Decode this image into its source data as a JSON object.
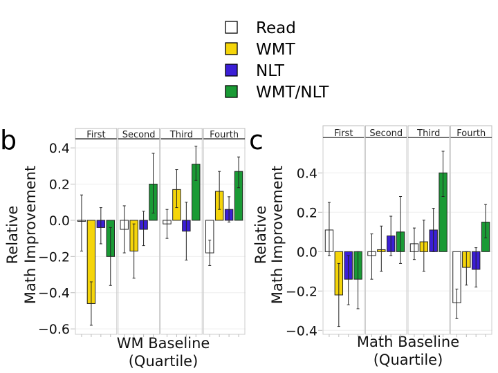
{
  "legend": {
    "items": [
      {
        "label": "Read",
        "color": "#ffffff"
      },
      {
        "label": "WMT",
        "color": "#f5d50a"
      },
      {
        "label": "NLT",
        "color": "#3b1fd6"
      },
      {
        "label": "WMT/NLT",
        "color": "#1a9a35"
      }
    ]
  },
  "chart_data": [
    {
      "panel": "b",
      "type": "bar",
      "facets": [
        "First",
        "Second",
        "Third",
        "Fourth"
      ],
      "series": [
        {
          "name": "Read",
          "values": [
            0.0,
            -0.05,
            -0.02,
            -0.18
          ],
          "err": [
            [
              -0.17,
              0.14
            ],
            [
              -0.18,
              0.08
            ],
            [
              -0.1,
              0.06
            ],
            [
              -0.25,
              -0.11
            ]
          ]
        },
        {
          "name": "WMT",
          "values": [
            -0.46,
            -0.17,
            0.17,
            0.16
          ],
          "err": [
            [
              -0.58,
              -0.34
            ],
            [
              -0.32,
              -0.02
            ],
            [
              0.07,
              0.28
            ],
            [
              0.06,
              0.27
            ]
          ]
        },
        {
          "name": "NLT",
          "values": [
            -0.04,
            -0.05,
            -0.06,
            0.06
          ],
          "err": [
            [
              -0.13,
              0.07
            ],
            [
              -0.14,
              0.05
            ],
            [
              -0.22,
              0.1
            ],
            [
              -0.01,
              0.13
            ]
          ]
        },
        {
          "name": "WMT/NLT",
          "values": [
            -0.2,
            0.2,
            0.31,
            0.27
          ],
          "err": [
            [
              -0.36,
              -0.04
            ],
            [
              0.04,
              0.37
            ],
            [
              0.22,
              0.41
            ],
            [
              0.18,
              0.35
            ]
          ]
        }
      ],
      "ylabel_line1": "Relative",
      "ylabel_line2": "Math Improvement",
      "xlabel_line1": "WM Baseline",
      "xlabel_line2": "(Quartile)",
      "ylim": [
        -0.63,
        0.45
      ],
      "yticks": [
        0.4,
        0.2,
        0.0,
        -0.2,
        -0.4,
        -0.6
      ],
      "ytick_labels": [
        "0.4",
        "0.2",
        "0.0",
        "−0.2",
        "−0.4",
        "−0.6"
      ]
    },
    {
      "panel": "c",
      "type": "bar",
      "facets": [
        "First",
        "Second",
        "Third",
        "Fourth"
      ],
      "series": [
        {
          "name": "Read",
          "values": [
            0.11,
            -0.02,
            0.04,
            -0.26
          ],
          "err": [
            [
              -0.02,
              0.25
            ],
            [
              -0.14,
              0.09
            ],
            [
              -0.04,
              0.12
            ],
            [
              -0.34,
              -0.19
            ]
          ]
        },
        {
          "name": "WMT",
          "values": [
            -0.22,
            0.01,
            0.05,
            -0.08
          ],
          "err": [
            [
              -0.38,
              -0.06
            ],
            [
              -0.1,
              0.13
            ],
            [
              -0.1,
              0.16
            ],
            [
              -0.17,
              0.0
            ]
          ]
        },
        {
          "name": "NLT",
          "values": [
            -0.14,
            0.08,
            0.11,
            -0.09
          ],
          "err": [
            [
              -0.27,
              -0.02
            ],
            [
              -0.02,
              0.18
            ],
            [
              0.0,
              0.22
            ],
            [
              -0.18,
              0.02
            ]
          ]
        },
        {
          "name": "WMT/NLT",
          "values": [
            -0.14,
            0.1,
            0.4,
            0.15
          ],
          "err": [
            [
              -0.29,
              0.0
            ],
            [
              -0.06,
              0.28
            ],
            [
              0.28,
              0.51
            ],
            [
              0.07,
              0.24
            ]
          ]
        }
      ],
      "ylabel_line1": "Relative",
      "ylabel_line2": "Math Improvement",
      "xlabel_line1": "Math Baseline",
      "xlabel_line2": "(Quartile)",
      "ylim": [
        -0.42,
        0.58
      ],
      "yticks": [
        0.4,
        0.2,
        0.0,
        -0.2,
        -0.4
      ],
      "ytick_labels": [
        "0.4",
        "0.2",
        "0.0",
        "−0.2",
        "−0.4"
      ]
    }
  ]
}
